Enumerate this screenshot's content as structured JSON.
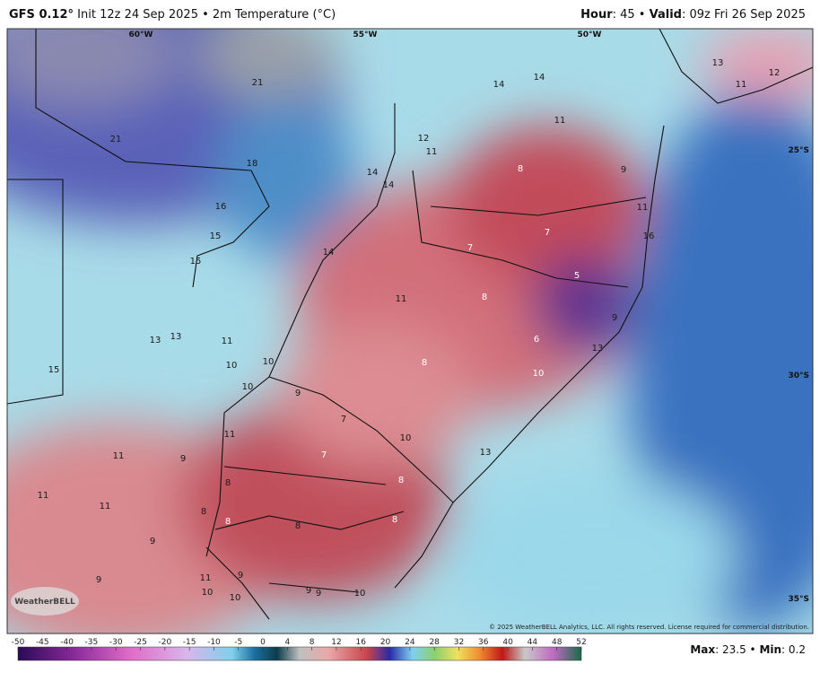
{
  "header": {
    "model": "GFS 0.12°",
    "description": "Init 12z 24 Sep 2025 • 2m Temperature (°C)",
    "valid": [
      "Hour",
      ": 45 • ",
      "Valid",
      ": 09z Fri 26 Sep 2025"
    ]
  },
  "map": {
    "longitudes": [
      "60°W",
      "55°W",
      "50°W"
    ],
    "latitudes": [
      "25°S",
      "30°S",
      "35°S"
    ],
    "labels": [
      "21",
      "21",
      "18",
      "16",
      "15",
      "15",
      "14",
      "14",
      "14",
      "14",
      "14",
      "12",
      "11",
      "11",
      "13",
      "12",
      "11",
      "8",
      "9",
      "11",
      "16",
      "7",
      "7",
      "5",
      "8",
      "11",
      "9",
      "6",
      "13",
      "8",
      "10",
      "13",
      "13",
      "11",
      "10",
      "10",
      "10",
      "9",
      "7",
      "10",
      "7",
      "13",
      "11",
      "9",
      "11",
      "15",
      "11",
      "11",
      "8",
      "8",
      "8",
      "8",
      "8",
      "8",
      "9",
      "9",
      "9",
      "11",
      "10",
      "10",
      "9",
      "9",
      "10"
    ],
    "logo": "WeatherBELL",
    "copyright": "© 2025 WeatherBELL Analytics, LLC. All rights reserved. License required for commercial distribution."
  },
  "colorbar": {
    "ticks": [
      -50,
      -45,
      -40,
      -35,
      -30,
      -25,
      -20,
      -15,
      -10,
      -5,
      0,
      4,
      8,
      12,
      16,
      20,
      24,
      28,
      32,
      36,
      40,
      44,
      48,
      52
    ]
  },
  "footer": {
    "stats": [
      "Max",
      ": 23.5 • ",
      "Min",
      ": 0.2"
    ]
  }
}
